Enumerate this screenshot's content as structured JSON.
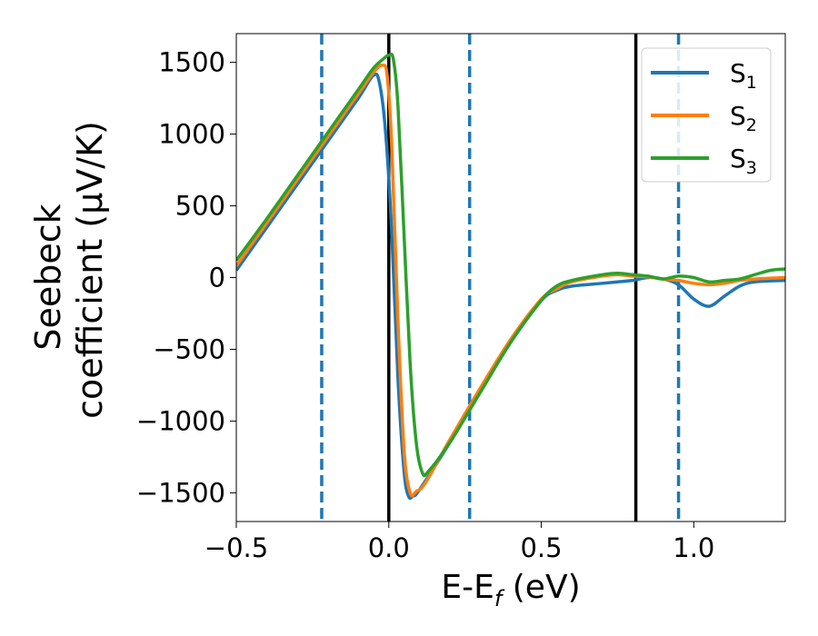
{
  "chart_data": {
    "type": "line",
    "xlabel_main": "E-E",
    "xlabel_sub": "f",
    "xlabel_unit": " (eV)",
    "ylabel_line1": "Seebeck",
    "ylabel_line2": "coefficient  (μV/K)",
    "xlim": [
      -0.5,
      1.3
    ],
    "ylim": [
      -1700,
      1700
    ],
    "xticks": [
      -0.5,
      0.0,
      0.5,
      1.0
    ],
    "xtick_labels": [
      "−0.5",
      "0.0",
      "0.5",
      "1.0"
    ],
    "yticks": [
      -1500,
      -1000,
      -500,
      0,
      500,
      1000,
      1500
    ],
    "ytick_labels": [
      "−1500",
      "−1000",
      "−500",
      "0",
      "500",
      "1000",
      "1500"
    ],
    "grid": false,
    "legend_position": "top-right",
    "vlines_solid": [
      0.0,
      0.81
    ],
    "vlines_dashed": [
      -0.22,
      0.265,
      0.95
    ],
    "vline_solid_color": "#000000",
    "vline_dashed_color": "#1f77b4",
    "series": [
      {
        "name_base": "S",
        "name_sub": "1",
        "color": "#1f77b4",
        "points": [
          [
            -0.5,
            50
          ],
          [
            -0.4,
            350
          ],
          [
            -0.3,
            650
          ],
          [
            -0.2,
            950
          ],
          [
            -0.1,
            1250
          ],
          [
            -0.05,
            1410
          ],
          [
            -0.03,
            1350
          ],
          [
            -0.01,
            1000
          ],
          [
            0.01,
            300
          ],
          [
            0.03,
            -700
          ],
          [
            0.05,
            -1350
          ],
          [
            0.065,
            -1525
          ],
          [
            0.08,
            -1520
          ],
          [
            0.1,
            -1480
          ],
          [
            0.2,
            -1150
          ],
          [
            0.3,
            -790
          ],
          [
            0.4,
            -450
          ],
          [
            0.5,
            -160
          ],
          [
            0.55,
            -90
          ],
          [
            0.6,
            -60
          ],
          [
            0.7,
            -40
          ],
          [
            0.75,
            -30
          ],
          [
            0.8,
            -20
          ],
          [
            0.85,
            0
          ],
          [
            0.9,
            -10
          ],
          [
            0.95,
            -50
          ],
          [
            1.0,
            -150
          ],
          [
            1.05,
            -200
          ],
          [
            1.1,
            -130
          ],
          [
            1.15,
            -60
          ],
          [
            1.2,
            -30
          ],
          [
            1.3,
            -20
          ]
        ]
      },
      {
        "name_base": "S",
        "name_sub": "2",
        "color": "#ff7f0e",
        "points": [
          [
            -0.5,
            80
          ],
          [
            -0.4,
            380
          ],
          [
            -0.3,
            680
          ],
          [
            -0.2,
            980
          ],
          [
            -0.1,
            1280
          ],
          [
            -0.05,
            1430
          ],
          [
            -0.02,
            1480
          ],
          [
            -0.005,
            1400
          ],
          [
            0.01,
            900
          ],
          [
            0.03,
            -300
          ],
          [
            0.05,
            -1200
          ],
          [
            0.07,
            -1500
          ],
          [
            0.09,
            -1490
          ],
          [
            0.12,
            -1430
          ],
          [
            0.2,
            -1130
          ],
          [
            0.3,
            -770
          ],
          [
            0.4,
            -430
          ],
          [
            0.5,
            -150
          ],
          [
            0.55,
            -80
          ],
          [
            0.6,
            -30
          ],
          [
            0.7,
            10
          ],
          [
            0.75,
            20
          ],
          [
            0.8,
            10
          ],
          [
            0.85,
            5
          ],
          [
            0.9,
            -10
          ],
          [
            0.95,
            -20
          ],
          [
            1.0,
            -40
          ],
          [
            1.05,
            -50
          ],
          [
            1.1,
            -40
          ],
          [
            1.15,
            -20
          ],
          [
            1.2,
            -10
          ],
          [
            1.3,
            0
          ]
        ]
      },
      {
        "name_base": "S",
        "name_sub": "3",
        "color": "#2ca02c",
        "points": [
          [
            -0.5,
            120
          ],
          [
            -0.4,
            410
          ],
          [
            -0.3,
            710
          ],
          [
            -0.2,
            1010
          ],
          [
            -0.1,
            1310
          ],
          [
            -0.05,
            1460
          ],
          [
            -0.02,
            1520
          ],
          [
            0.0,
            1550
          ],
          [
            0.015,
            1520
          ],
          [
            0.03,
            1200
          ],
          [
            0.05,
            300
          ],
          [
            0.07,
            -600
          ],
          [
            0.09,
            -1150
          ],
          [
            0.11,
            -1360
          ],
          [
            0.13,
            -1350
          ],
          [
            0.2,
            -1150
          ],
          [
            0.3,
            -800
          ],
          [
            0.4,
            -450
          ],
          [
            0.5,
            -160
          ],
          [
            0.55,
            -60
          ],
          [
            0.6,
            -20
          ],
          [
            0.7,
            20
          ],
          [
            0.75,
            30
          ],
          [
            0.8,
            20
          ],
          [
            0.85,
            10
          ],
          [
            0.9,
            -10
          ],
          [
            0.95,
            10
          ],
          [
            1.0,
            0
          ],
          [
            1.05,
            -30
          ],
          [
            1.1,
            -20
          ],
          [
            1.15,
            -10
          ],
          [
            1.2,
            20
          ],
          [
            1.25,
            50
          ],
          [
            1.3,
            60
          ]
        ]
      }
    ]
  }
}
